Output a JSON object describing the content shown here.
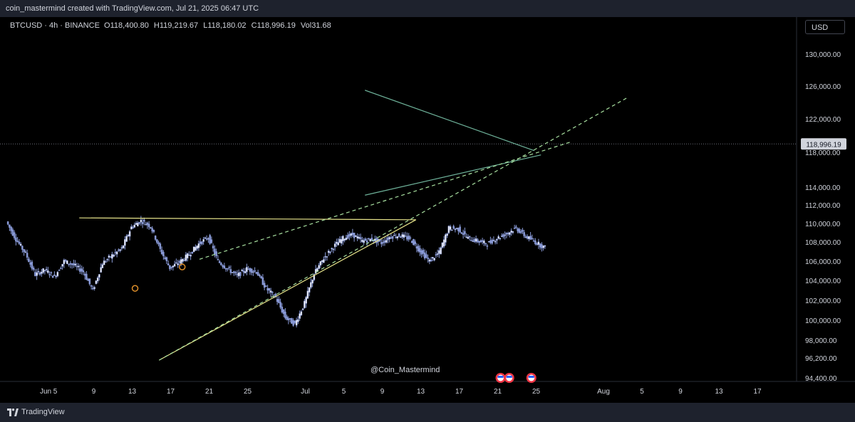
{
  "header": {
    "credit": "coin_mastermind created with TradingView.com, Jul 21, 2025 06:47 UTC"
  },
  "legend": {
    "symbol": "BTCUSD · 4h · BINANCE",
    "o_label": "O",
    "o_value": "118,400.80",
    "h_label": "H",
    "h_value": "119,219.67",
    "l_label": "L",
    "l_value": "118,180.02",
    "c_label": "C",
    "c_value": "118,996.19",
    "vol_label": "Vol",
    "vol_value": "31.68"
  },
  "currency_button": "USD",
  "watermark": "@Coin_Mastermind",
  "footer": {
    "brand": "TradingView"
  },
  "colors": {
    "background": "#000000",
    "candle": "#8a9bd8",
    "yellow_line": "#e6e38a",
    "teal_line": "#6fb39b",
    "green_dashed": "#a8e0a0",
    "axis_text": "#d1d4dc",
    "marker_orange": "#e0902a"
  },
  "chart_data": {
    "type": "candlestick",
    "title": "BTCUSD · 4h · BINANCE",
    "current_price": 118996.19,
    "current_price_label": "118,996.19",
    "y_ticks": [
      {
        "value": 130000,
        "label": "130,000.00"
      },
      {
        "value": 126000,
        "label": "126,000.00"
      },
      {
        "value": 122000,
        "label": "122,000.00"
      },
      {
        "value": 118000,
        "label": "118,000.00"
      },
      {
        "value": 114000,
        "label": "114,000.00"
      },
      {
        "value": 112000,
        "label": "112,000.00"
      },
      {
        "value": 110000,
        "label": "110,000.00"
      },
      {
        "value": 108000,
        "label": "108,000.00"
      },
      {
        "value": 106000,
        "label": "106,000.00"
      },
      {
        "value": 104000,
        "label": "104,000.00"
      },
      {
        "value": 102000,
        "label": "102,000.00"
      },
      {
        "value": 100000,
        "label": "100,000.00"
      },
      {
        "value": 98000,
        "label": "98,000.00"
      },
      {
        "value": 96200,
        "label": "96,200.00"
      },
      {
        "value": 94400,
        "label": "94,400.00"
      }
    ],
    "x_ticks": [
      {
        "day": 4,
        "label": "Jun"
      },
      {
        "day": 5,
        "label": "5"
      },
      {
        "day": 9,
        "label": "9"
      },
      {
        "day": 13,
        "label": "13"
      },
      {
        "day": 17,
        "label": "17"
      },
      {
        "day": 21,
        "label": "21"
      },
      {
        "day": 25,
        "label": "25"
      },
      {
        "day": 31,
        "label": "Jul"
      },
      {
        "day": 35,
        "label": "5"
      },
      {
        "day": 39,
        "label": "9"
      },
      {
        "day": 43,
        "label": "13"
      },
      {
        "day": 47,
        "label": "17"
      },
      {
        "day": 51,
        "label": "21"
      },
      {
        "day": 55,
        "label": "25"
      },
      {
        "day": 62,
        "label": "Aug"
      },
      {
        "day": 66,
        "label": "5"
      },
      {
        "day": 70,
        "label": "9"
      },
      {
        "day": 74,
        "label": "13"
      },
      {
        "day": 78,
        "label": "17"
      }
    ],
    "price_path": [
      [
        0,
        110200
      ],
      [
        1,
        108300
      ],
      [
        2,
        106800
      ],
      [
        3,
        104600
      ],
      [
        4,
        105100
      ],
      [
        5,
        104400
      ],
      [
        6,
        106000
      ],
      [
        7,
        105600
      ],
      [
        8,
        104900
      ],
      [
        9,
        103000
      ],
      [
        10,
        105800
      ],
      [
        11,
        106600
      ],
      [
        12,
        107300
      ],
      [
        13,
        109600
      ],
      [
        14,
        110300
      ],
      [
        15,
        109700
      ],
      [
        16,
        107200
      ],
      [
        17,
        105300
      ],
      [
        18,
        105900
      ],
      [
        19,
        106700
      ],
      [
        20,
        107800
      ],
      [
        21,
        108500
      ],
      [
        22,
        106000
      ],
      [
        23,
        105200
      ],
      [
        24,
        104500
      ],
      [
        25,
        105200
      ],
      [
        26,
        104900
      ],
      [
        27,
        103200
      ],
      [
        28,
        102300
      ],
      [
        29,
        100300
      ],
      [
        30,
        99600
      ],
      [
        31,
        101700
      ],
      [
        32,
        104700
      ],
      [
        33,
        106300
      ],
      [
        34,
        107500
      ],
      [
        35,
        108400
      ],
      [
        36,
        108800
      ],
      [
        37,
        108100
      ],
      [
        38,
        108300
      ],
      [
        39,
        107900
      ],
      [
        40,
        108600
      ],
      [
        41,
        108700
      ],
      [
        42,
        108300
      ],
      [
        43,
        107100
      ],
      [
        44,
        106000
      ],
      [
        45,
        106900
      ],
      [
        46,
        109500
      ],
      [
        47,
        109400
      ],
      [
        48,
        108400
      ],
      [
        49,
        108100
      ],
      [
        50,
        107800
      ],
      [
        51,
        108400
      ],
      [
        52,
        108900
      ],
      [
        53,
        109500
      ],
      [
        54,
        108600
      ],
      [
        55,
        108000
      ],
      [
        56,
        107400
      ],
      [
        57,
        108300
      ],
      [
        58,
        110000
      ],
      [
        59,
        111000
      ],
      [
        60,
        111600
      ],
      [
        61,
        113500
      ],
      [
        62,
        116600
      ],
      [
        63,
        117400
      ],
      [
        64,
        117000
      ],
      [
        65,
        116500
      ],
      [
        66,
        117800
      ],
      [
        67,
        119700
      ],
      [
        68,
        118300
      ],
      [
        69,
        117300
      ],
      [
        70,
        116700
      ],
      [
        71,
        117600
      ],
      [
        72,
        118300
      ],
      [
        73,
        119200
      ],
      [
        74,
        118400
      ],
      [
        75,
        117500
      ],
      [
        76,
        118700
      ],
      [
        77,
        117600
      ],
      [
        78,
        118300
      ],
      [
        79,
        118300
      ],
      [
        80,
        118996
      ]
    ],
    "trendlines": [
      {
        "name": "resistance",
        "style": "solid",
        "color": "#e6e38a",
        "from": [
          7.5,
          110600
        ],
        "to": [
          42.5,
          110400
        ]
      },
      {
        "name": "ascending-support",
        "style": "solid",
        "color": "#e6e38a",
        "from": [
          15.8,
          96000
        ],
        "to": [
          42.5,
          110400
        ]
      },
      {
        "name": "pennant-top",
        "style": "solid",
        "color": "#6fb39b",
        "from": [
          37.2,
          125500
        ],
        "to": [
          54.8,
          118200
        ]
      },
      {
        "name": "pennant-bottom",
        "style": "solid",
        "color": "#6fb39b",
        "from": [
          37.2,
          113100
        ],
        "to": [
          55.5,
          117700
        ]
      },
      {
        "name": "dashed-upper",
        "style": "dashed",
        "color": "#a8e0a0",
        "from": [
          20,
          106200
        ],
        "to": [
          58.5,
          119200
        ]
      },
      {
        "name": "dashed-lower",
        "style": "dashed",
        "color": "#a8e0a0",
        "from": [
          15.8,
          96000
        ],
        "to": [
          64.5,
          124600
        ]
      }
    ],
    "markers": [
      {
        "day": 13.3,
        "value": 103200
      },
      {
        "day": 18.2,
        "value": 105400
      }
    ],
    "event_icons": [
      {
        "day": 51.3
      },
      {
        "day": 52.2
      },
      {
        "day": 54.5
      }
    ]
  }
}
